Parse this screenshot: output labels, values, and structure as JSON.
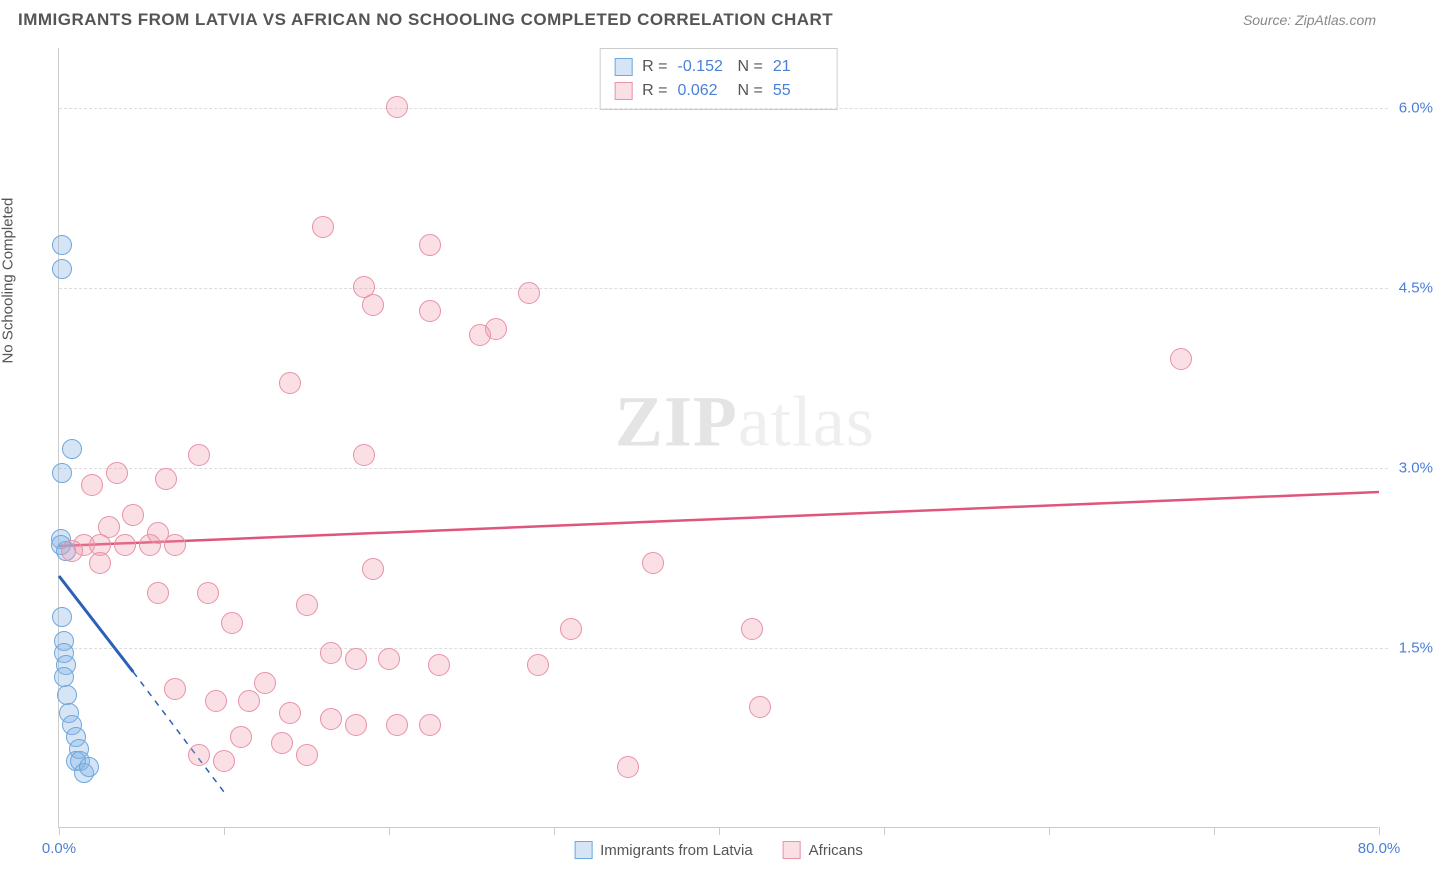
{
  "title": "IMMIGRANTS FROM LATVIA VS AFRICAN NO SCHOOLING COMPLETED CORRELATION CHART",
  "source": "Source: ZipAtlas.com",
  "y_axis_label": "No Schooling Completed",
  "watermark_zip": "ZIP",
  "watermark_atlas": "atlas",
  "chart": {
    "type": "scatter",
    "xlim": [
      0,
      80
    ],
    "ylim": [
      0,
      6.5
    ],
    "x_ticks": [
      0,
      10,
      20,
      30,
      40,
      50,
      60,
      70,
      80
    ],
    "x_tick_labels": {
      "0": "0.0%",
      "80": "80.0%"
    },
    "y_gridlines": [
      1.5,
      3.0,
      4.5,
      6.0
    ],
    "y_tick_labels": {
      "1.5": "1.5%",
      "3.0": "3.0%",
      "4.5": "4.5%",
      "6.0": "6.0%"
    },
    "grid_color": "#dddddd",
    "axis_color": "#cccccc",
    "tick_label_color": "#4a7fd8",
    "series": [
      {
        "name": "Immigrants from Latvia",
        "fill": "rgba(135,180,230,0.35)",
        "stroke": "#6fa8dc",
        "marker_radius": 10,
        "R": "-0.152",
        "N": "21",
        "trend": {
          "x1": 0,
          "y1": 2.1,
          "x2": 4.5,
          "y2": 1.3,
          "dash_x1": 4.5,
          "dash_y1": 1.3,
          "dash_x2": 10,
          "dash_y2": 0.3,
          "color": "#2b5fb8",
          "width": 3
        },
        "points": [
          [
            0.2,
            4.85
          ],
          [
            0.2,
            4.65
          ],
          [
            0.8,
            3.15
          ],
          [
            0.2,
            2.95
          ],
          [
            0.1,
            2.4
          ],
          [
            0.1,
            2.35
          ],
          [
            0.4,
            2.3
          ],
          [
            0.2,
            1.75
          ],
          [
            0.3,
            1.55
          ],
          [
            0.3,
            1.45
          ],
          [
            0.4,
            1.35
          ],
          [
            0.3,
            1.25
          ],
          [
            0.5,
            1.1
          ],
          [
            0.6,
            0.95
          ],
          [
            0.8,
            0.85
          ],
          [
            1.0,
            0.75
          ],
          [
            1.2,
            0.65
          ],
          [
            1.0,
            0.55
          ],
          [
            1.3,
            0.55
          ],
          [
            1.5,
            0.45
          ],
          [
            1.8,
            0.5
          ]
        ]
      },
      {
        "name": "Africans",
        "fill": "rgba(240,150,170,0.3)",
        "stroke": "#e891a7",
        "marker_radius": 11,
        "R": "0.062",
        "N": "55",
        "trend": {
          "x1": 0,
          "y1": 2.35,
          "x2": 80,
          "y2": 2.8,
          "color": "#e0557b",
          "width": 2.5
        },
        "points": [
          [
            20.5,
            6.0
          ],
          [
            16,
            5.0
          ],
          [
            22.5,
            4.85
          ],
          [
            18.5,
            4.5
          ],
          [
            28.5,
            4.45
          ],
          [
            22.5,
            4.3
          ],
          [
            19,
            4.35
          ],
          [
            25.5,
            4.1
          ],
          [
            26.5,
            4.15
          ],
          [
            68,
            3.9
          ],
          [
            14,
            3.7
          ],
          [
            8.5,
            3.1
          ],
          [
            18.5,
            3.1
          ],
          [
            3.5,
            2.95
          ],
          [
            2,
            2.85
          ],
          [
            4.5,
            2.6
          ],
          [
            3,
            2.5
          ],
          [
            1.5,
            2.35
          ],
          [
            6,
            2.45
          ],
          [
            2.5,
            2.35
          ],
          [
            5.5,
            2.35
          ],
          [
            7,
            2.35
          ],
          [
            0.8,
            2.3
          ],
          [
            2.5,
            2.2
          ],
          [
            36,
            2.2
          ],
          [
            19,
            2.15
          ],
          [
            6,
            1.95
          ],
          [
            9,
            1.95
          ],
          [
            15,
            1.85
          ],
          [
            10.5,
            1.7
          ],
          [
            31,
            1.65
          ],
          [
            42,
            1.65
          ],
          [
            16.5,
            1.45
          ],
          [
            18,
            1.4
          ],
          [
            20,
            1.4
          ],
          [
            23,
            1.35
          ],
          [
            29,
            1.35
          ],
          [
            12.5,
            1.2
          ],
          [
            7,
            1.15
          ],
          [
            9.5,
            1.05
          ],
          [
            11.5,
            1.05
          ],
          [
            14,
            0.95
          ],
          [
            16.5,
            0.9
          ],
          [
            18,
            0.85
          ],
          [
            20.5,
            0.85
          ],
          [
            22.5,
            0.85
          ],
          [
            42.5,
            1.0
          ],
          [
            11,
            0.75
          ],
          [
            13.5,
            0.7
          ],
          [
            8.5,
            0.6
          ],
          [
            10,
            0.55
          ],
          [
            15,
            0.6
          ],
          [
            34.5,
            0.5
          ],
          [
            6.5,
            2.9
          ],
          [
            4,
            2.35
          ]
        ]
      }
    ],
    "bottom_legend": [
      {
        "swatch_fill": "rgba(135,180,230,0.35)",
        "swatch_stroke": "#6fa8dc",
        "label": "Immigrants from Latvia"
      },
      {
        "swatch_fill": "rgba(240,150,170,0.3)",
        "swatch_stroke": "#e891a7",
        "label": "Africans"
      }
    ]
  }
}
